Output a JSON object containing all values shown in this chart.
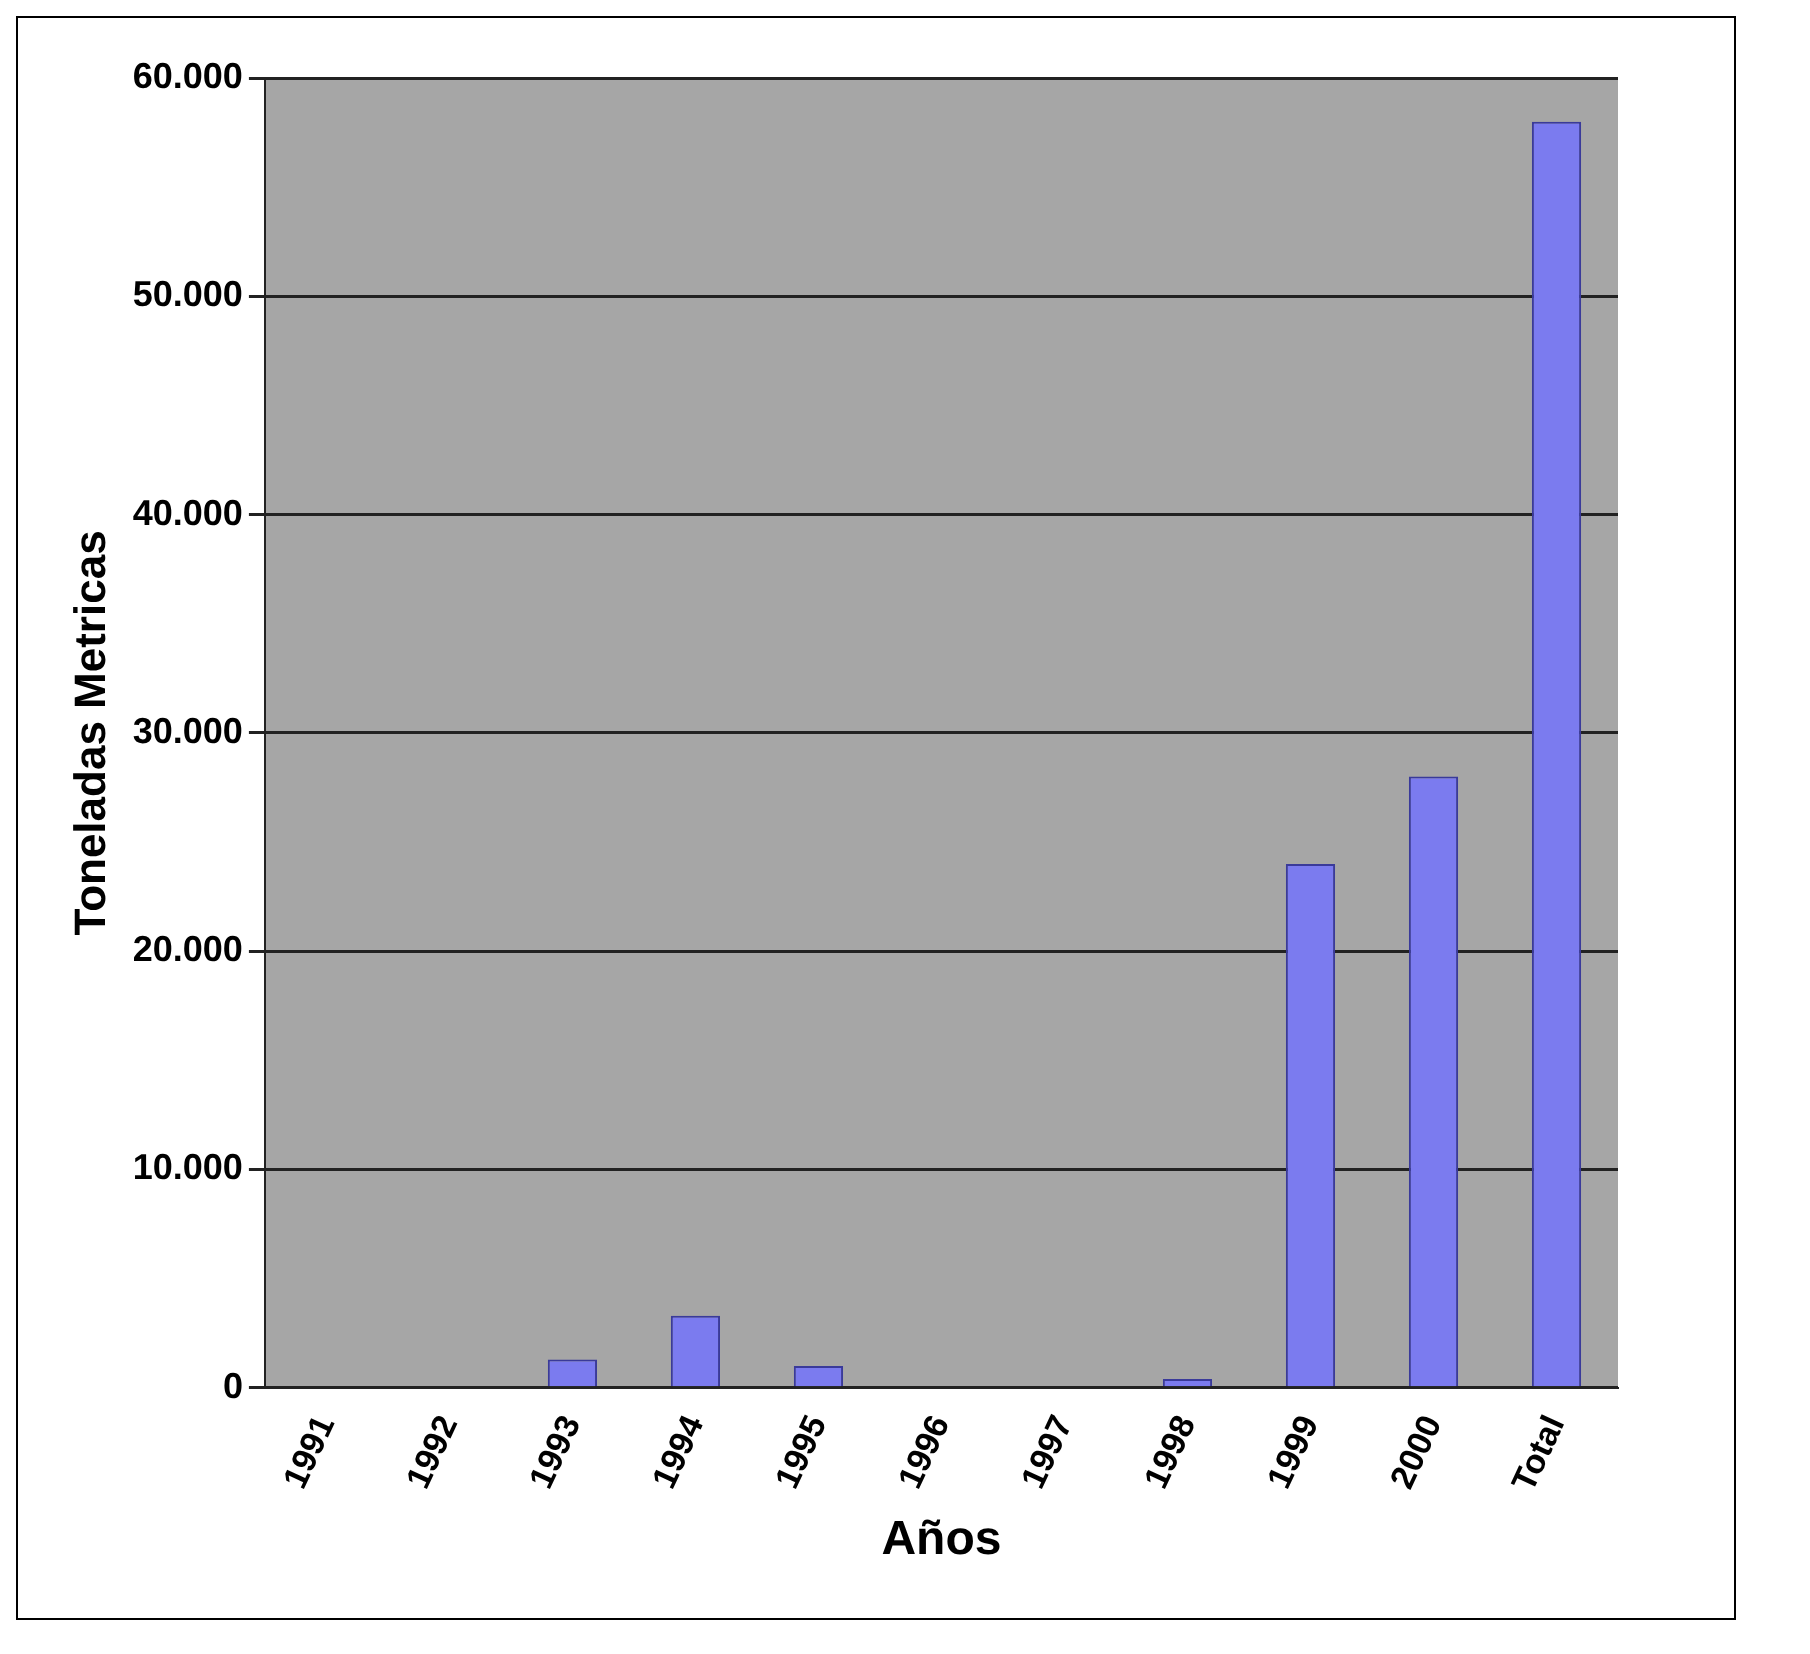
{
  "chart_data": {
    "type": "bar",
    "xlabel": "Años",
    "ylabel": "Toneladas Metricas",
    "categories": [
      "1991",
      "1992",
      "1993",
      "1994",
      "1995",
      "1996",
      "1997",
      "1998",
      "1999",
      "2000",
      "Total"
    ],
    "values": [
      0,
      0,
      1300,
      3300,
      1000,
      0,
      0,
      400,
      24000,
      28000,
      58000
    ],
    "color": "#7b7bef",
    "ylim": [
      0,
      60000
    ],
    "yticks": [
      {
        "value": 0,
        "label": "0"
      },
      {
        "value": 10000,
        "label": "10.000"
      },
      {
        "value": 20000,
        "label": "20.000"
      },
      {
        "value": 30000,
        "label": "30.000"
      },
      {
        "value": 40000,
        "label": "40.000"
      },
      {
        "value": 50000,
        "label": "50.000"
      },
      {
        "value": 60000,
        "label": "60.000"
      }
    ],
    "grid": "y",
    "legend": false
  }
}
